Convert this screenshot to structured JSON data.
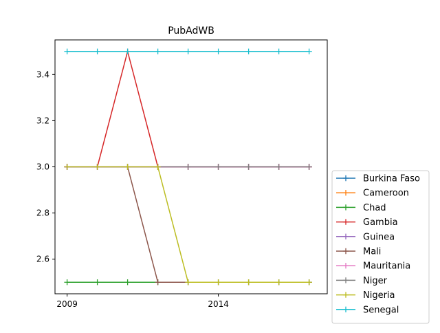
{
  "chart_data": {
    "type": "line",
    "title": "PubAdWB",
    "xlabel": "",
    "ylabel": "",
    "x": [
      2009,
      2010,
      2011,
      2012,
      2013,
      2014,
      2015,
      2016,
      2017
    ],
    "xlim": [
      2008.6,
      2017.6
    ],
    "ylim": [
      2.45,
      3.55
    ],
    "x_ticks": [
      2009,
      2014
    ],
    "x_tick_labels": [
      "2009",
      "2014"
    ],
    "y_ticks": [
      2.6,
      2.8,
      3.0,
      3.2,
      3.4
    ],
    "y_tick_labels": [
      "2.6",
      "2.8",
      "3.0",
      "3.2",
      "3.4"
    ],
    "grid": false,
    "legend_position": "outside-right-bottom",
    "marker": "+",
    "series": [
      {
        "name": "Burkina Faso",
        "color": "#1f77b4",
        "values": [
          3.0,
          3.0,
          3.0,
          3.0,
          3.0,
          3.0,
          3.0,
          3.0,
          3.0
        ]
      },
      {
        "name": "Cameroon",
        "color": "#ff7f0e",
        "values": [
          3.0,
          3.0,
          3.0,
          3.0,
          3.0,
          3.0,
          3.0,
          3.0,
          3.0
        ]
      },
      {
        "name": "Chad",
        "color": "#2ca02c",
        "values": [
          2.5,
          2.5,
          2.5,
          2.5,
          2.5,
          2.5,
          2.5,
          2.5,
          2.5
        ]
      },
      {
        "name": "Gambia",
        "color": "#d62728",
        "values": [
          3.0,
          3.0,
          3.5,
          3.0,
          3.0,
          3.0,
          3.0,
          3.0,
          3.0
        ]
      },
      {
        "name": "Guinea",
        "color": "#9467bd",
        "values": [
          3.0,
          3.0,
          3.0,
          3.0,
          3.0,
          3.0,
          3.0,
          3.0,
          3.0
        ]
      },
      {
        "name": "Mali",
        "color": "#8c564b",
        "values": [
          3.0,
          3.0,
          3.0,
          2.5,
          2.5,
          2.5,
          2.5,
          2.5,
          2.5
        ]
      },
      {
        "name": "Mauritania",
        "color": "#e377c2",
        "values": [
          3.0,
          3.0,
          3.0,
          3.0,
          3.0,
          3.0,
          3.0,
          3.0,
          3.0
        ]
      },
      {
        "name": "Niger",
        "color": "#7f7f7f",
        "values": [
          3.0,
          3.0,
          3.0,
          3.0,
          3.0,
          3.0,
          3.0,
          3.0,
          3.0
        ]
      },
      {
        "name": "Nigeria",
        "color": "#bcbd22",
        "values": [
          3.0,
          3.0,
          3.0,
          3.0,
          2.5,
          2.5,
          2.5,
          2.5,
          2.5
        ]
      },
      {
        "name": "Senegal",
        "color": "#17becf",
        "values": [
          3.5,
          3.5,
          3.5,
          3.5,
          3.5,
          3.5,
          3.5,
          3.5,
          3.5
        ]
      }
    ]
  }
}
